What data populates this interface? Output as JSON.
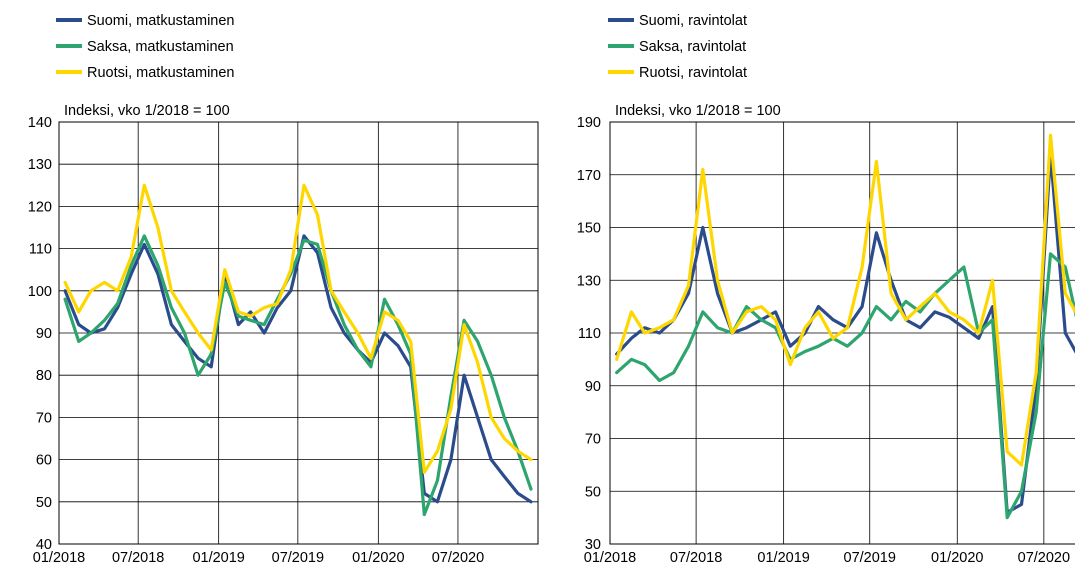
{
  "colors": {
    "suomi": "#2B4C8C",
    "saksa": "#2EA56F",
    "ruotsi": "#FFD700"
  },
  "chart_data": [
    {
      "type": "line",
      "ylabel": "Indeksi, vko 1/2018 = 100",
      "ylim": [
        40,
        140
      ],
      "yticks": [
        40,
        50,
        60,
        70,
        80,
        90,
        100,
        110,
        120,
        130,
        140
      ],
      "xlim": [
        "2018-01-01",
        "2020-12-31"
      ],
      "xticks": [
        "01/2018",
        "07/2018",
        "01/2019",
        "07/2019",
        "01/2020",
        "07/2020"
      ],
      "grid": true,
      "legend_position": "top-left",
      "series": [
        {
          "name": "Suomi, matkustaminen",
          "color": "suomi",
          "x": [
            "2018-01",
            "2018-02",
            "2018-03",
            "2018-04",
            "2018-05",
            "2018-06",
            "2018-07",
            "2018-08",
            "2018-09",
            "2018-10",
            "2018-11",
            "2018-12",
            "2019-01",
            "2019-02",
            "2019-03",
            "2019-04",
            "2019-05",
            "2019-06",
            "2019-07",
            "2019-08",
            "2019-09",
            "2019-10",
            "2019-11",
            "2019-12",
            "2020-01",
            "2020-02",
            "2020-03",
            "2020-04",
            "2020-05",
            "2020-06",
            "2020-07",
            "2020-08",
            "2020-09",
            "2020-10",
            "2020-11",
            "2020-12"
          ],
          "y": [
            100,
            92,
            90,
            91,
            96,
            104,
            111,
            104,
            92,
            88,
            84,
            82,
            104,
            92,
            95,
            90,
            96,
            100,
            113,
            109,
            96,
            90,
            86,
            83,
            90,
            87,
            82,
            52,
            50,
            60,
            80,
            70,
            60,
            56,
            52,
            50
          ]
        },
        {
          "name": "Saksa, matkustaminen",
          "color": "saksa",
          "x": [
            "2018-01",
            "2018-02",
            "2018-03",
            "2018-04",
            "2018-05",
            "2018-06",
            "2018-07",
            "2018-08",
            "2018-09",
            "2018-10",
            "2018-11",
            "2018-12",
            "2019-01",
            "2019-02",
            "2019-03",
            "2019-04",
            "2019-05",
            "2019-06",
            "2019-07",
            "2019-08",
            "2019-09",
            "2019-10",
            "2019-11",
            "2019-12",
            "2020-01",
            "2020-02",
            "2020-03",
            "2020-04",
            "2020-05",
            "2020-06",
            "2020-07",
            "2020-08",
            "2020-09",
            "2020-10",
            "2020-11",
            "2020-12"
          ],
          "y": [
            98,
            88,
            90,
            93,
            97,
            106,
            113,
            106,
            96,
            90,
            80,
            85,
            102,
            94,
            93,
            92,
            98,
            104,
            112,
            111,
            100,
            92,
            86,
            82,
            98,
            92,
            85,
            47,
            55,
            75,
            93,
            88,
            80,
            70,
            62,
            53
          ]
        },
        {
          "name": "Ruotsi, matkustaminen",
          "color": "ruotsi",
          "x": [
            "2018-01",
            "2018-02",
            "2018-03",
            "2018-04",
            "2018-05",
            "2018-06",
            "2018-07",
            "2018-08",
            "2018-09",
            "2018-10",
            "2018-11",
            "2018-12",
            "2019-01",
            "2019-02",
            "2019-03",
            "2019-04",
            "2019-05",
            "2019-06",
            "2019-07",
            "2019-08",
            "2019-09",
            "2019-10",
            "2019-11",
            "2019-12",
            "2020-01",
            "2020-02",
            "2020-03",
            "2020-04",
            "2020-05",
            "2020-06",
            "2020-07",
            "2020-08",
            "2020-09",
            "2020-10",
            "2020-11",
            "2020-12"
          ],
          "y": [
            102,
            95,
            100,
            102,
            100,
            108,
            125,
            115,
            100,
            95,
            90,
            86,
            105,
            95,
            94,
            96,
            97,
            105,
            125,
            118,
            100,
            95,
            90,
            84,
            95,
            93,
            88,
            57,
            62,
            72,
            92,
            83,
            70,
            65,
            62,
            60
          ]
        }
      ]
    },
    {
      "type": "line",
      "ylabel": "Indeksi, vko 1/2018 = 100",
      "ylim": [
        30,
        190
      ],
      "yticks": [
        30,
        50,
        70,
        90,
        110,
        130,
        150,
        170,
        190
      ],
      "xlim": [
        "2018-01-01",
        "2020-09-15"
      ],
      "xticks": [
        "01/2018",
        "07/2018",
        "01/2019",
        "07/2019",
        "01/2020",
        "07/2020"
      ],
      "grid": true,
      "legend_position": "top-left",
      "series": [
        {
          "name": "Suomi, ravintolat",
          "color": "suomi",
          "x": [
            "2018-01",
            "2018-02",
            "2018-03",
            "2018-04",
            "2018-05",
            "2018-06",
            "2018-07",
            "2018-08",
            "2018-09",
            "2018-10",
            "2018-11",
            "2018-12",
            "2019-01",
            "2019-02",
            "2019-03",
            "2019-04",
            "2019-05",
            "2019-06",
            "2019-07",
            "2019-08",
            "2019-09",
            "2019-10",
            "2019-11",
            "2019-12",
            "2020-01",
            "2020-02",
            "2020-03",
            "2020-04",
            "2020-05",
            "2020-06",
            "2020-07",
            "2020-08",
            "2020-09"
          ],
          "y": [
            102,
            108,
            112,
            110,
            115,
            125,
            150,
            125,
            110,
            112,
            115,
            118,
            105,
            110,
            120,
            115,
            112,
            120,
            148,
            130,
            115,
            112,
            118,
            116,
            112,
            108,
            120,
            42,
            45,
            90,
            178,
            110,
            100
          ]
        },
        {
          "name": "Saksa, ravintolat",
          "color": "saksa",
          "x": [
            "2018-01",
            "2018-02",
            "2018-03",
            "2018-04",
            "2018-05",
            "2018-06",
            "2018-07",
            "2018-08",
            "2018-09",
            "2018-10",
            "2018-11",
            "2018-12",
            "2019-01",
            "2019-02",
            "2019-03",
            "2019-04",
            "2019-05",
            "2019-06",
            "2019-07",
            "2019-08",
            "2019-09",
            "2019-10",
            "2019-11",
            "2019-12",
            "2020-01",
            "2020-02",
            "2020-03",
            "2020-04",
            "2020-05",
            "2020-06",
            "2020-07",
            "2020-08",
            "2020-09"
          ],
          "y": [
            95,
            100,
            98,
            92,
            95,
            105,
            118,
            112,
            110,
            120,
            115,
            112,
            100,
            103,
            105,
            108,
            105,
            110,
            120,
            115,
            122,
            118,
            125,
            130,
            135,
            110,
            115,
            40,
            50,
            80,
            140,
            135,
            110
          ]
        },
        {
          "name": "Ruotsi, ravintolat",
          "color": "ruotsi",
          "x": [
            "2018-01",
            "2018-02",
            "2018-03",
            "2018-04",
            "2018-05",
            "2018-06",
            "2018-07",
            "2018-08",
            "2018-09",
            "2018-10",
            "2018-11",
            "2018-12",
            "2019-01",
            "2019-02",
            "2019-03",
            "2019-04",
            "2019-05",
            "2019-06",
            "2019-07",
            "2019-08",
            "2019-09",
            "2019-10",
            "2019-11",
            "2019-12",
            "2020-01",
            "2020-02",
            "2020-03",
            "2020-04",
            "2020-05",
            "2020-06",
            "2020-07",
            "2020-08",
            "2020-09"
          ],
          "y": [
            100,
            118,
            110,
            112,
            115,
            128,
            172,
            130,
            110,
            118,
            120,
            115,
            98,
            112,
            118,
            108,
            112,
            135,
            175,
            125,
            115,
            120,
            125,
            118,
            115,
            110,
            130,
            65,
            60,
            95,
            185,
            125,
            115
          ]
        }
      ]
    }
  ]
}
